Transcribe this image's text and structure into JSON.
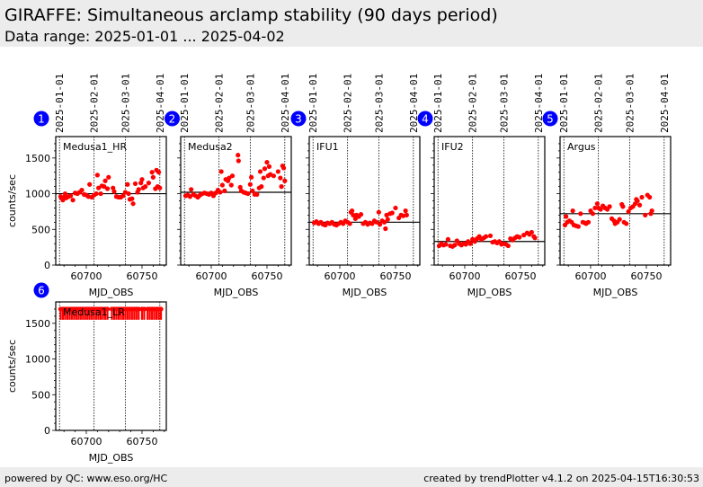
{
  "header": {
    "title": "GIRAFFE: Simultaneous arclamp stability (90 days period)",
    "range": "Data range: 2025-01-01 ... 2025-04-02"
  },
  "footer": {
    "left": "powered by QC: www.eso.org/HC",
    "right": "created by trendPlotter v4.1.2 on 2025-04-15T16:30:53"
  },
  "colors": {
    "points": "#ff0000",
    "badge": "#0000ff"
  },
  "chart_data": {
    "type": "scatter",
    "xlabel": "MJD_OBS",
    "ylabel": "counts/sec",
    "xlim": [
      60672.6,
      60771.8
    ],
    "ylim": [
      0,
      1800
    ],
    "xticks": [
      60700,
      60750
    ],
    "yticks": [
      0,
      500,
      1000,
      1500
    ],
    "date_lines": [
      {
        "label": "2025-01-01",
        "mjd": 60676
      },
      {
        "label": "2025-02-01",
        "mjd": 60707
      },
      {
        "label": "2025-03-01",
        "mjd": 60735
      },
      {
        "label": "2025-04-01",
        "mjd": 60766
      }
    ],
    "panels": [
      {
        "num": "1",
        "name": "Medusa1_HR",
        "ref": 1000,
        "points": [
          [
            60677,
            960
          ],
          [
            60678,
            940
          ],
          [
            60679,
            910
          ],
          [
            60680,
            950
          ],
          [
            60681,
            1000
          ],
          [
            60682,
            940
          ],
          [
            60684,
            960
          ],
          [
            60686,
            970
          ],
          [
            60688,
            910
          ],
          [
            60690,
            1010
          ],
          [
            60692,
            1000
          ],
          [
            60694,
            1020
          ],
          [
            60696,
            1050
          ],
          [
            60698,
            990
          ],
          [
            60700,
            980
          ],
          [
            60702,
            960
          ],
          [
            60703,
            1130
          ],
          [
            60705,
            950
          ],
          [
            60707,
            980
          ],
          [
            60709,
            1000
          ],
          [
            60710,
            1260
          ],
          [
            60711,
            1080
          ],
          [
            60713,
            1000
          ],
          [
            60714,
            1110
          ],
          [
            60716,
            1100
          ],
          [
            60717,
            1180
          ],
          [
            60719,
            1070
          ],
          [
            60720,
            1230
          ],
          [
            60724,
            1080
          ],
          [
            60725,
            1030
          ],
          [
            60727,
            960
          ],
          [
            60729,
            950
          ],
          [
            60731,
            950
          ],
          [
            60733,
            970
          ],
          [
            60735,
            1020
          ],
          [
            60737,
            1130
          ],
          [
            60738,
            1000
          ],
          [
            60739,
            920
          ],
          [
            60741,
            930
          ],
          [
            60742,
            860
          ],
          [
            60744,
            1140
          ],
          [
            60746,
            1020
          ],
          [
            60747,
            1060
          ],
          [
            60749,
            1150
          ],
          [
            60750,
            1200
          ],
          [
            60751,
            1080
          ],
          [
            60753,
            1100
          ],
          [
            60756,
            1150
          ],
          [
            60759,
            1300
          ],
          [
            60760,
            1230
          ],
          [
            60762,
            1070
          ],
          [
            60763,
            1330
          ],
          [
            60764,
            1100
          ],
          [
            60765,
            1300
          ],
          [
            60766,
            1080
          ]
        ]
      },
      {
        "num": "2",
        "name": "Medusa2",
        "ref": 1020,
        "points": [
          [
            60677,
            970
          ],
          [
            60679,
            980
          ],
          [
            60681,
            960
          ],
          [
            60682,
            1060
          ],
          [
            60684,
            990
          ],
          [
            60686,
            970
          ],
          [
            60688,
            950
          ],
          [
            60690,
            980
          ],
          [
            60692,
            1000
          ],
          [
            60694,
            1010
          ],
          [
            60696,
            1000
          ],
          [
            60698,
            990
          ],
          [
            60700,
            1010
          ],
          [
            60702,
            970
          ],
          [
            60704,
            1010
          ],
          [
            60706,
            1050
          ],
          [
            60708,
            1020
          ],
          [
            60709,
            1310
          ],
          [
            60710,
            1120
          ],
          [
            60712,
            1040
          ],
          [
            60713,
            1200
          ],
          [
            60715,
            1180
          ],
          [
            60716,
            1220
          ],
          [
            60718,
            1120
          ],
          [
            60719,
            1250
          ],
          [
            60724,
            1540
          ],
          [
            60724.5,
            1460
          ],
          [
            60726,
            1090
          ],
          [
            60727,
            1040
          ],
          [
            60729,
            1020
          ],
          [
            60731,
            1010
          ],
          [
            60733,
            1000
          ],
          [
            60735,
            1130
          ],
          [
            60736,
            1230
          ],
          [
            60737,
            1040
          ],
          [
            60739,
            990
          ],
          [
            60741,
            990
          ],
          [
            60743,
            1080
          ],
          [
            60744,
            1310
          ],
          [
            60745,
            1100
          ],
          [
            60747,
            1220
          ],
          [
            60748,
            1350
          ],
          [
            60750,
            1440
          ],
          [
            60751,
            1250
          ],
          [
            60752,
            1380
          ],
          [
            60753,
            1270
          ],
          [
            60756,
            1250
          ],
          [
            60760,
            1310
          ],
          [
            60762,
            1220
          ],
          [
            60763,
            1100
          ],
          [
            60764,
            1390
          ],
          [
            60765,
            1360
          ],
          [
            60766,
            1180
          ]
        ]
      },
      {
        "num": "3",
        "name": "IFU1",
        "ref": 600,
        "points": [
          [
            60677,
            590
          ],
          [
            60679,
            610
          ],
          [
            60681,
            580
          ],
          [
            60683,
            600
          ],
          [
            60685,
            570
          ],
          [
            60687,
            560
          ],
          [
            60689,
            590
          ],
          [
            60691,
            580
          ],
          [
            60693,
            600
          ],
          [
            60695,
            570
          ],
          [
            60697,
            560
          ],
          [
            60699,
            580
          ],
          [
            60701,
            600
          ],
          [
            60703,
            580
          ],
          [
            60705,
            620
          ],
          [
            60707,
            600
          ],
          [
            60709,
            580
          ],
          [
            60710,
            740
          ],
          [
            60711,
            760
          ],
          [
            60712,
            700
          ],
          [
            60714,
            650
          ],
          [
            60715,
            700
          ],
          [
            60717,
            680
          ],
          [
            60719,
            710
          ],
          [
            60721,
            580
          ],
          [
            60723,
            600
          ],
          [
            60725,
            570
          ],
          [
            60727,
            590
          ],
          [
            60729,
            580
          ],
          [
            60731,
            620
          ],
          [
            60733,
            600
          ],
          [
            60735,
            740
          ],
          [
            60736,
            570
          ],
          [
            60738,
            620
          ],
          [
            60740,
            600
          ],
          [
            60741,
            510
          ],
          [
            60742,
            700
          ],
          [
            60743,
            640
          ],
          [
            60745,
            720
          ],
          [
            60747,
            730
          ],
          [
            60750,
            800
          ],
          [
            60753,
            660
          ],
          [
            60755,
            700
          ],
          [
            60757,
            690
          ],
          [
            60759,
            760
          ],
          [
            60760,
            700
          ]
        ]
      },
      {
        "num": "4",
        "name": "IFU2",
        "ref": 330,
        "points": [
          [
            60677,
            270
          ],
          [
            60679,
            300
          ],
          [
            60681,
            280
          ],
          [
            60683,
            290
          ],
          [
            60685,
            360
          ],
          [
            60687,
            270
          ],
          [
            60689,
            260
          ],
          [
            60691,
            280
          ],
          [
            60693,
            340
          ],
          [
            60695,
            300
          ],
          [
            60697,
            280
          ],
          [
            60699,
            300
          ],
          [
            60701,
            290
          ],
          [
            60703,
            330
          ],
          [
            60705,
            300
          ],
          [
            60707,
            360
          ],
          [
            60709,
            330
          ],
          [
            60711,
            370
          ],
          [
            60713,
            400
          ],
          [
            60715,
            360
          ],
          [
            60717,
            380
          ],
          [
            60719,
            400
          ],
          [
            60723,
            410
          ],
          [
            60725,
            320
          ],
          [
            60727,
            330
          ],
          [
            60729,
            310
          ],
          [
            60731,
            330
          ],
          [
            60733,
            290
          ],
          [
            60735,
            300
          ],
          [
            60737,
            290
          ],
          [
            60739,
            270
          ],
          [
            60741,
            370
          ],
          [
            60743,
            350
          ],
          [
            60745,
            380
          ],
          [
            60747,
            400
          ],
          [
            60749,
            390
          ],
          [
            60753,
            420
          ],
          [
            60756,
            450
          ],
          [
            60758,
            430
          ],
          [
            60760,
            460
          ],
          [
            60762,
            400
          ],
          [
            60763,
            380
          ]
        ]
      },
      {
        "num": "5",
        "name": "Argus",
        "ref": 720,
        "points": [
          [
            60677,
            560
          ],
          [
            60678,
            680
          ],
          [
            60679,
            600
          ],
          [
            60681,
            620
          ],
          [
            60683,
            600
          ],
          [
            60684,
            760
          ],
          [
            60685,
            560
          ],
          [
            60687,
            550
          ],
          [
            60689,
            540
          ],
          [
            60691,
            720
          ],
          [
            60693,
            600
          ],
          [
            60695,
            590
          ],
          [
            60696,
            580
          ],
          [
            60698,
            600
          ],
          [
            60700,
            760
          ],
          [
            60702,
            720
          ],
          [
            60704,
            800
          ],
          [
            60706,
            860
          ],
          [
            60707,
            800
          ],
          [
            60709,
            780
          ],
          [
            60711,
            830
          ],
          [
            60713,
            800
          ],
          [
            60715,
            780
          ],
          [
            60717,
            820
          ],
          [
            60719,
            650
          ],
          [
            60721,
            620
          ],
          [
            60722,
            580
          ],
          [
            60724,
            600
          ],
          [
            60726,
            640
          ],
          [
            60728,
            850
          ],
          [
            60729,
            820
          ],
          [
            60730,
            600
          ],
          [
            60732,
            580
          ],
          [
            60734,
            750
          ],
          [
            60736,
            800
          ],
          [
            60738,
            820
          ],
          [
            60740,
            860
          ],
          [
            60741,
            920
          ],
          [
            60742,
            900
          ],
          [
            60744,
            840
          ],
          [
            60746,
            950
          ],
          [
            60749,
            700
          ],
          [
            60751,
            980
          ],
          [
            60753,
            950
          ],
          [
            60754,
            720
          ],
          [
            60755,
            760
          ]
        ]
      },
      {
        "num": "6",
        "name": "Medusa1_LR",
        "ref": null,
        "err_low": 1550,
        "err_high": 1730,
        "points": [
          [
            60677,
            1700
          ],
          [
            60679,
            1700
          ],
          [
            60681,
            1700
          ],
          [
            60683,
            1700
          ],
          [
            60685,
            1700
          ],
          [
            60687,
            1700
          ],
          [
            60689,
            1700
          ],
          [
            60691,
            1700
          ],
          [
            60693,
            1700
          ],
          [
            60695,
            1700
          ],
          [
            60697,
            1700
          ],
          [
            60699,
            1700
          ],
          [
            60701,
            1700
          ],
          [
            60703,
            1700
          ],
          [
            60705,
            1700
          ],
          [
            60707,
            1700
          ],
          [
            60709,
            1700
          ],
          [
            60711,
            1700
          ],
          [
            60713,
            1700
          ],
          [
            60715,
            1700
          ],
          [
            60717,
            1700
          ],
          [
            60719,
            1700
          ],
          [
            60723,
            1700
          ],
          [
            60725,
            1700
          ],
          [
            60727,
            1700
          ],
          [
            60729,
            1700
          ],
          [
            60731,
            1700
          ],
          [
            60733,
            1700
          ],
          [
            60735,
            1700
          ],
          [
            60737,
            1700
          ],
          [
            60739,
            1700
          ],
          [
            60741,
            1700
          ],
          [
            60743,
            1700
          ],
          [
            60745,
            1700
          ],
          [
            60747,
            1700
          ],
          [
            60750,
            1700
          ],
          [
            60752,
            1700
          ],
          [
            60755,
            1700
          ],
          [
            60757,
            1700
          ],
          [
            60759,
            1700
          ],
          [
            60761,
            1700
          ],
          [
            60763,
            1700
          ],
          [
            60765,
            1700
          ],
          [
            60767,
            1700
          ]
        ]
      }
    ]
  }
}
